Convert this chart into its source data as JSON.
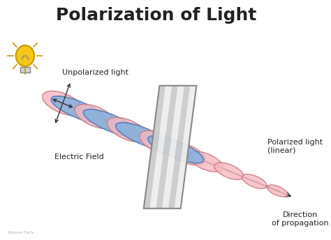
{
  "title": "Polarization of Light",
  "title_fontsize": 18,
  "title_fontweight": "bold",
  "bg_color": "#ffffff",
  "pink_color": "#f5b8c0",
  "pink_edge": "#c87880",
  "blue_color": "#7ab0e0",
  "blue_edge": "#4070b0",
  "arrow_color": "#444444",
  "text_color": "#222222",
  "label_unpolarized": "Unpolarized light",
  "label_electric": "Electric Field",
  "label_polarized": "Polarized light\n(linear)",
  "label_direction": "Direction\nof propagation",
  "bulb_color": "#f5c518",
  "bulb_edge": "#c49a00",
  "stripe_gray": "#cccccc",
  "stripe_white": "#eeeeee",
  "filter_edge": "#888888"
}
